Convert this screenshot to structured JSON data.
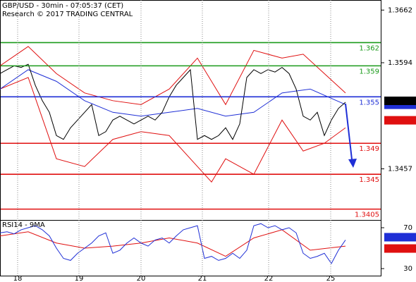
{
  "chart_data": {
    "type": "line",
    "title": "GBP/USD - 30min - 07:05:37 (CET)",
    "subtitle": "Research © 2017 TRADING CENTRAL",
    "xlim": [
      0,
      108
    ],
    "xticks": [
      {
        "value": 5,
        "label": "18"
      },
      {
        "value": 22.4,
        "label": "19"
      },
      {
        "value": 40,
        "label": "20"
      },
      {
        "value": 57.4,
        "label": "21"
      },
      {
        "value": 76.2,
        "label": "22"
      },
      {
        "value": 93.8,
        "label": "25"
      }
    ],
    "ylim": [
      1.3391,
      1.3675
    ],
    "yticks": [
      1.3662,
      1.3594,
      1.3457
    ],
    "levels": [
      {
        "value": 1.362,
        "color": "#1a9a1a"
      },
      {
        "value": 1.359,
        "color": "#1a9a1a"
      },
      {
        "value": 1.355,
        "color": "#1f2fd6"
      },
      {
        "value": 1.349,
        "color": "#e01010"
      },
      {
        "value": 1.345,
        "color": "#e01010"
      },
      {
        "value": 1.3405,
        "color": "#e01010"
      }
    ],
    "price_tags": [
      {
        "value": 1.3543,
        "color": "#000000"
      },
      {
        "value": 1.35397,
        "color": "#1f2fd6"
      },
      {
        "value": 1.35197,
        "color": "#e01010"
      }
    ],
    "series": [
      {
        "name": "close",
        "color": "#000000",
        "x": [
          0,
          2,
          4,
          6,
          8,
          10,
          12,
          14,
          16,
          18,
          20,
          22,
          24,
          26,
          28,
          30,
          32,
          34,
          36,
          38,
          40,
          42,
          44,
          46,
          48,
          50,
          52,
          54,
          56,
          58,
          60,
          62,
          64,
          66,
          68,
          70,
          72,
          74,
          76,
          78,
          80,
          82,
          84,
          86,
          88,
          90,
          92,
          94,
          96,
          98
        ],
        "values": [
          1.358,
          1.3585,
          1.359,
          1.3588,
          1.3592,
          1.3565,
          1.3545,
          1.353,
          1.35,
          1.3495,
          1.351,
          1.352,
          1.353,
          1.354,
          1.35,
          1.3505,
          1.352,
          1.3525,
          1.352,
          1.3515,
          1.352,
          1.3525,
          1.352,
          1.353,
          1.355,
          1.3565,
          1.3575,
          1.3585,
          1.3495,
          1.35,
          1.3495,
          1.35,
          1.351,
          1.3495,
          1.3515,
          1.3575,
          1.3585,
          1.358,
          1.3585,
          1.3582,
          1.3588,
          1.358,
          1.356,
          1.3525,
          1.352,
          1.353,
          1.35,
          1.352,
          1.3535,
          1.3543
        ]
      },
      {
        "name": "ma",
        "color": "#1f2fd6",
        "x": [
          0,
          8,
          16,
          24,
          32,
          40,
          48,
          56,
          64,
          72,
          80,
          88,
          98
        ],
        "values": [
          1.356,
          1.3585,
          1.357,
          1.3545,
          1.353,
          1.3525,
          1.353,
          1.3535,
          1.3525,
          1.353,
          1.3555,
          1.356,
          1.354
        ]
      },
      {
        "name": "upper",
        "color": "#e01010",
        "x": [
          0,
          8,
          16,
          24,
          32,
          40,
          48,
          56,
          64,
          72,
          80,
          86,
          92,
          98
        ],
        "values": [
          1.359,
          1.3615,
          1.358,
          1.3555,
          1.3545,
          1.354,
          1.356,
          1.36,
          1.354,
          1.361,
          1.36,
          1.3605,
          1.358,
          1.3555
        ]
      },
      {
        "name": "lower",
        "color": "#e01010",
        "x": [
          0,
          8,
          16,
          24,
          32,
          40,
          48,
          56,
          60,
          64,
          72,
          80,
          86,
          92,
          98
        ],
        "values": [
          1.356,
          1.3575,
          1.347,
          1.346,
          1.3495,
          1.3505,
          1.35,
          1.346,
          1.344,
          1.347,
          1.345,
          1.352,
          1.348,
          1.349,
          1.351
        ]
      }
    ],
    "rsi": {
      "title": "RSI14 - 9MA",
      "ylim": [
        22.4,
        77.6
      ],
      "yticks": [
        70,
        30
      ],
      "tags": [
        {
          "value": 57.9642,
          "color": "#1f2fd6"
        },
        {
          "value": 52.4043,
          "color": "#e01010"
        }
      ],
      "series": [
        {
          "name": "rsi",
          "color": "#1f2fd6",
          "x": [
            0,
            2,
            4,
            6,
            8,
            10,
            12,
            14,
            16,
            18,
            20,
            22,
            24,
            26,
            28,
            30,
            32,
            34,
            36,
            38,
            40,
            42,
            44,
            46,
            48,
            50,
            52,
            54,
            56,
            58,
            60,
            62,
            64,
            66,
            68,
            70,
            72,
            74,
            76,
            78,
            80,
            82,
            84,
            86,
            88,
            90,
            92,
            94,
            96,
            98
          ],
          "values": [
            65,
            66,
            64,
            68,
            70,
            72,
            68,
            62,
            50,
            40,
            38,
            45,
            50,
            55,
            62,
            65,
            45,
            48,
            55,
            60,
            55,
            52,
            58,
            60,
            55,
            62,
            68,
            70,
            72,
            40,
            42,
            38,
            40,
            45,
            40,
            48,
            72,
            74,
            70,
            72,
            68,
            70,
            65,
            45,
            40,
            42,
            45,
            35,
            48,
            58
          ]
        },
        {
          "name": "rsi-ma",
          "color": "#e01010",
          "x": [
            0,
            8,
            16,
            24,
            32,
            40,
            48,
            56,
            64,
            72,
            80,
            88,
            98
          ],
          "values": [
            62,
            66,
            55,
            50,
            52,
            55,
            60,
            55,
            42,
            60,
            68,
            48,
            52
          ]
        }
      ]
    }
  }
}
